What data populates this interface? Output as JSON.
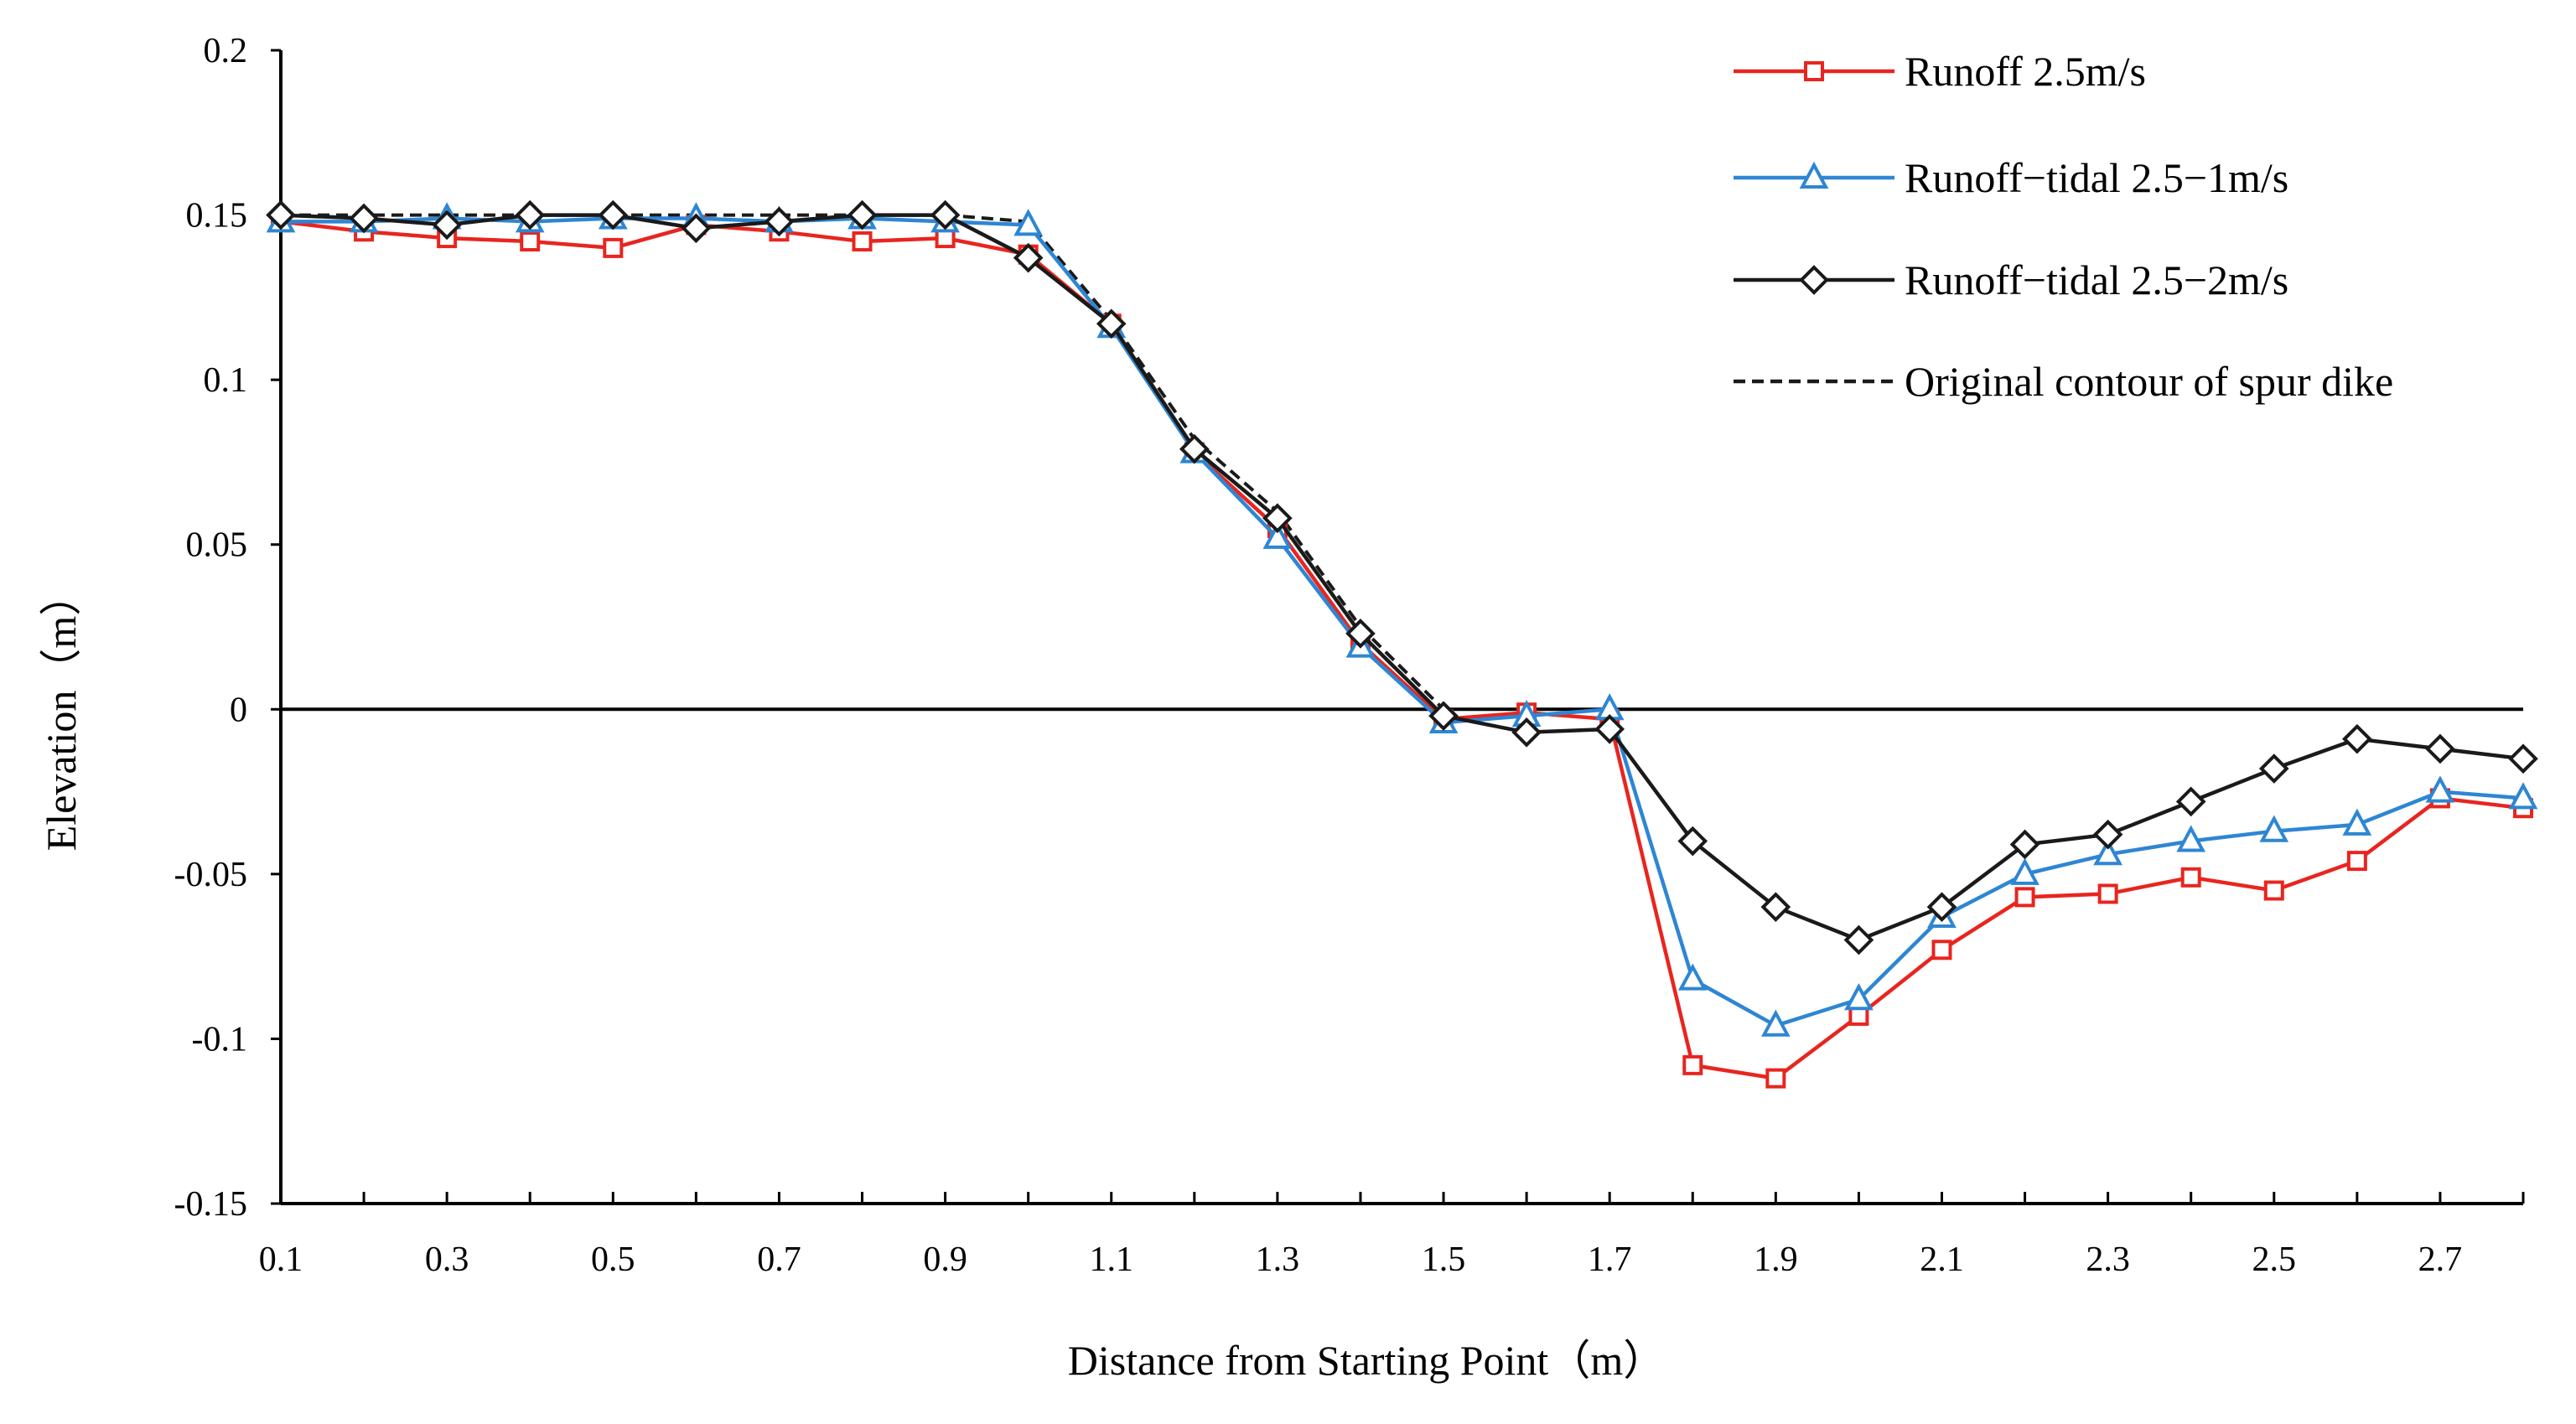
{
  "chart_data": {
    "type": "line",
    "title": "",
    "xlabel": "Distance from Starting Point（m）",
    "ylabel": "Elevation（m）",
    "xlim": [
      0.1,
      2.8
    ],
    "ylim": [
      -0.15,
      0.2
    ],
    "x_ticks": [
      "0.1",
      "0.3",
      "0.5",
      "0.7",
      "0.9",
      "1.1",
      "1.3",
      "1.5",
      "1.7",
      "1.9",
      "2.1",
      "2.3",
      "2.5",
      "2.7"
    ],
    "y_ticks": [
      "0.2",
      "0.15",
      "0.1",
      "0.05",
      "0",
      "-0.05",
      "-0.1",
      "-0.15"
    ],
    "legend_position": "top-right",
    "x": [
      0.1,
      0.2,
      0.3,
      0.4,
      0.5,
      0.6,
      0.7,
      0.8,
      0.9,
      1.0,
      1.1,
      1.2,
      1.3,
      1.4,
      1.5,
      1.6,
      1.7,
      1.8,
      1.9,
      2.0,
      2.1,
      2.2,
      2.3,
      2.4,
      2.5,
      2.6,
      2.7,
      2.8
    ],
    "series": [
      {
        "name": "Runoff 2.5m/s",
        "color": "#e8251f",
        "marker": "square",
        "dashed": false,
        "values": [
          0.148,
          0.145,
          0.143,
          0.142,
          0.14,
          0.147,
          0.145,
          0.142,
          0.143,
          0.138,
          0.117,
          0.078,
          0.055,
          0.02,
          -0.003,
          -0.001,
          -0.003,
          -0.108,
          -0.112,
          -0.093,
          -0.073,
          -0.057,
          -0.056,
          -0.051,
          -0.055,
          -0.046,
          -0.027,
          -0.03
        ]
      },
      {
        "name": "Runoff−tidal 2.5−1m/s",
        "color": "#2e86d3",
        "marker": "triangle",
        "dashed": false,
        "values": [
          0.148,
          0.148,
          0.149,
          0.148,
          0.149,
          0.149,
          0.148,
          0.149,
          0.148,
          0.147,
          0.116,
          0.078,
          0.052,
          0.019,
          -0.004,
          -0.002,
          0.0,
          -0.082,
          -0.096,
          -0.088,
          -0.063,
          -0.05,
          -0.044,
          -0.04,
          -0.037,
          -0.035,
          -0.025,
          -0.027
        ]
      },
      {
        "name": "Runoff−tidal 2.5−2m/s",
        "color": "#1a1a1a",
        "marker": "diamond",
        "dashed": false,
        "values": [
          0.15,
          0.149,
          0.147,
          0.15,
          0.15,
          0.146,
          0.148,
          0.15,
          0.15,
          0.137,
          0.117,
          0.079,
          0.058,
          0.023,
          -0.002,
          -0.007,
          -0.006,
          -0.04,
          -0.06,
          -0.07,
          -0.06,
          -0.041,
          -0.038,
          -0.028,
          -0.018,
          -0.009,
          -0.012,
          -0.015
        ]
      },
      {
        "name": "Original contour of spur dike",
        "color": "#1a1a1a",
        "marker": "none",
        "dashed": true,
        "values": [
          0.15,
          0.15,
          0.15,
          0.15,
          0.15,
          0.15,
          0.15,
          0.15,
          0.15,
          0.148,
          0.118,
          0.082,
          0.06,
          0.025,
          0.0,
          null,
          null,
          null,
          null,
          null,
          null,
          null,
          null,
          null,
          null,
          null,
          null,
          null
        ]
      }
    ]
  }
}
